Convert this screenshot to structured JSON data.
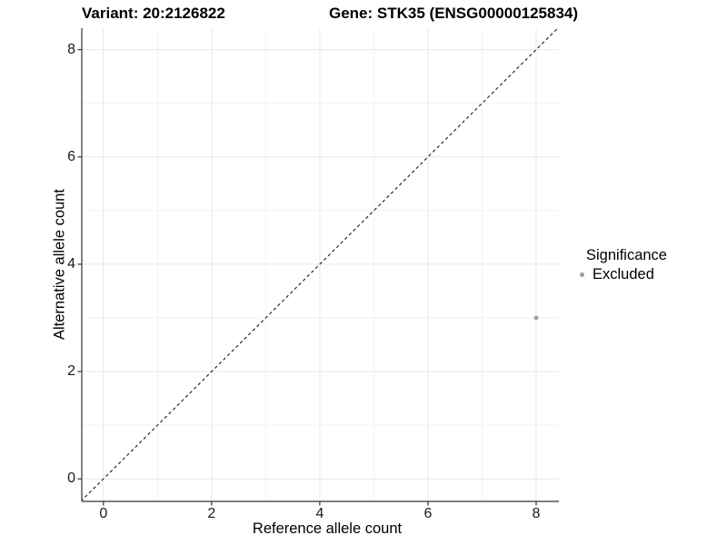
{
  "chart_data": {
    "type": "scatter",
    "title_left": "Variant: 20:2126822",
    "title_right": "Gene: STK35 (ENSG00000125834)",
    "xlabel": "Reference allele count",
    "ylabel": "Alternative allele count",
    "x_breaks": [
      0,
      2,
      4,
      6,
      8
    ],
    "y_breaks": [
      0,
      2,
      4,
      6,
      8
    ],
    "x_minor_breaks": [
      1,
      3,
      5,
      7
    ],
    "y_minor_breaks": [
      1,
      3,
      5,
      7
    ],
    "xlim": [
      -0.4,
      8.42
    ],
    "ylim": [
      -0.42,
      8.4
    ],
    "grid": true,
    "series": [
      {
        "name": "Excluded",
        "color": "#9e9e9e",
        "points": [
          {
            "x": 8,
            "y": 3
          }
        ]
      }
    ],
    "reference_line": {
      "type": "abline",
      "intercept": 0,
      "slope": 1,
      "style": "dashed",
      "color": "#1a1a1a"
    },
    "legend": {
      "title": "Significance",
      "position": "right",
      "items": [
        {
          "label": "Excluded",
          "color": "#9e9e9e"
        }
      ]
    }
  },
  "colors": {
    "background": "#ffffff",
    "grid_major": "#e7e7e7",
    "grid_minor": "#f2f2f2",
    "axis_line": "#333333",
    "tick_mark": "#333333",
    "text": "#000000",
    "point": "#9e9e9e"
  }
}
